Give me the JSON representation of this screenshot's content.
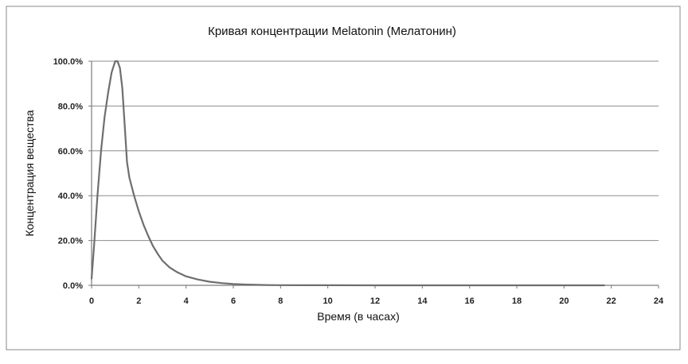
{
  "chart_data": {
    "type": "line",
    "title": "Кривая концентрации Melatonin (Мелатонин)",
    "xlabel": "Время (в часах)",
    "ylabel": "Концентрация вещества",
    "xlim": [
      0,
      24
    ],
    "ylim": [
      0,
      100
    ],
    "x_ticks": [
      "0",
      "2",
      "4",
      "6",
      "8",
      "10",
      "12",
      "14",
      "16",
      "18",
      "20",
      "22",
      "24"
    ],
    "x_tick_values": [
      0,
      2,
      4,
      6,
      8,
      10,
      12,
      14,
      16,
      18,
      20,
      22,
      24
    ],
    "y_ticks": [
      "0.0%",
      "20.0%",
      "40.0%",
      "60.0%",
      "80.0%",
      "100.0%"
    ],
    "y_tick_values": [
      0,
      20,
      40,
      60,
      80,
      100
    ],
    "grid": "horizontal",
    "legend": "none",
    "series": [
      {
        "color": "#6e6e6e",
        "x": [
          0,
          0.1,
          0.25,
          0.4,
          0.55,
          0.7,
          0.85,
          1.0,
          1.1,
          1.2,
          1.3,
          1.4,
          1.5,
          1.6,
          1.8,
          2.0,
          2.2,
          2.4,
          2.6,
          2.8,
          3.0,
          3.3,
          3.6,
          4.0,
          4.5,
          5.0,
          5.5,
          6.0,
          6.5,
          7.0,
          7.5,
          8.0,
          9.0,
          10.0,
          12.0,
          14.0,
          16.0,
          18.0,
          20.0,
          21.7
        ],
        "y": [
          3,
          17,
          40,
          60,
          75,
          86,
          95,
          100,
          100,
          97,
          88,
          72,
          55,
          48,
          40,
          33,
          27,
          22,
          17.5,
          14,
          11,
          8,
          6,
          4,
          2.6,
          1.6,
          1.0,
          0.6,
          0.35,
          0.2,
          0.12,
          0.08,
          0.04,
          0.02,
          0.01,
          0,
          0,
          0,
          0,
          0
        ]
      }
    ]
  }
}
